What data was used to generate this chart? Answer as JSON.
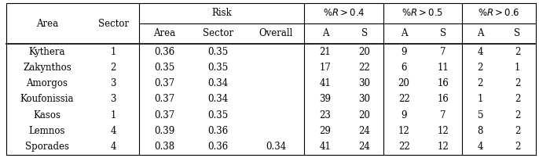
{
  "header_row1": [
    "Area",
    "Sector",
    "Risk",
    "%R > 0.4",
    "%R > 0.5",
    "%R > 0.6"
  ],
  "header_row2": [
    "",
    "",
    "Area",
    "Sector",
    "Overall",
    "A",
    "S",
    "A",
    "S",
    "A",
    "S"
  ],
  "rows": [
    [
      "Kythera",
      "1",
      "0.36",
      "0.35",
      "",
      "21",
      "20",
      "9",
      "7",
      "4",
      "2"
    ],
    [
      "Zakynthos",
      "2",
      "0.35",
      "0.35",
      "",
      "17",
      "22",
      "6",
      "11",
      "2",
      "1"
    ],
    [
      "Amorgos",
      "3",
      "0.37",
      "0.34",
      "",
      "41",
      "30",
      "20",
      "16",
      "2",
      "2"
    ],
    [
      "Koufonissia",
      "3",
      "0.37",
      "0.34",
      "",
      "39",
      "30",
      "22",
      "16",
      "1",
      "2"
    ],
    [
      "Kasos",
      "1",
      "0.37",
      "0.35",
      "",
      "23",
      "20",
      "9",
      "7",
      "5",
      "2"
    ],
    [
      "Lemnos",
      "4",
      "0.39",
      "0.36",
      "",
      "29",
      "24",
      "12",
      "12",
      "8",
      "2"
    ],
    [
      "Sporades",
      "4",
      "0.38",
      "0.36",
      "0.34",
      "41",
      "24",
      "22",
      "12",
      "4",
      "2"
    ]
  ],
  "background_color": "#ffffff",
  "line_color": "#000000",
  "font_size": 8.5,
  "fig_width": 6.86,
  "fig_height": 2.02,
  "dpi": 100
}
